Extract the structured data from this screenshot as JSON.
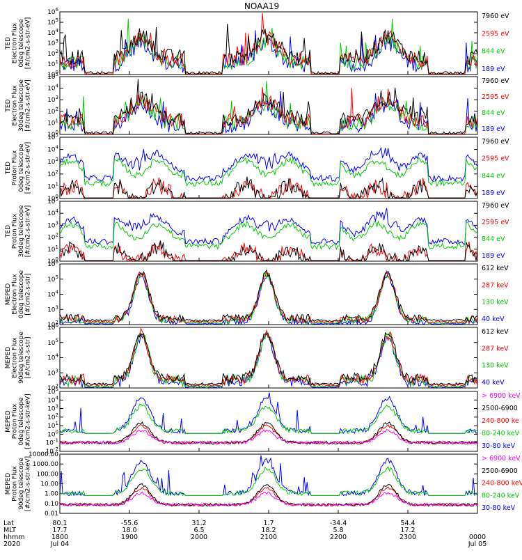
{
  "title": "NOAA19",
  "colors": {
    "black": "#000000",
    "red": "#ff0000",
    "green": "#00ee00",
    "blue": "#0000ff",
    "magenta": "#ff00ff"
  },
  "chart_data": {
    "type": "line",
    "x_range_hhmm": [
      "1800",
      "0000"
    ],
    "panels": [
      {
        "ylabel": [
          "TED",
          "Electron Flux",
          "0deg telescope",
          "[#/cm2-s-str-eV]"
        ],
        "yscale": "log",
        "ylim": [
          1,
          1000000
        ],
        "yticks": [
          "10^6",
          "10^5",
          "10^4",
          "10^3",
          "10^2",
          "10^1",
          "10^0"
        ],
        "legend": [
          {
            "label": "7960 eV",
            "color": "#000000"
          },
          {
            "label": "2595 eV",
            "color": "#ff0000"
          },
          {
            "label": "844 eV",
            "color": "#00cc00"
          },
          {
            "label": "189 eV",
            "color": "#0000ff"
          }
        ]
      },
      {
        "ylabel": [
          "TED",
          "Electron Flux",
          "30deg telescope",
          "[#/cm2-s-str-eV]"
        ],
        "yscale": "log",
        "ylim": [
          1,
          100000
        ],
        "yticks": [
          "10^5",
          "10^4",
          "10^3",
          "10^2",
          "10^1",
          "10^0"
        ],
        "legend": [
          {
            "label": "7960 eV",
            "color": "#000000"
          },
          {
            "label": "2595 eV",
            "color": "#ff0000"
          },
          {
            "label": "844 eV",
            "color": "#00cc00"
          },
          {
            "label": "189 eV",
            "color": "#0000ff"
          }
        ]
      },
      {
        "ylabel": [
          "TED",
          "Proton Flux",
          "0deg telescope",
          "[#/cm2-s-str-eV]"
        ],
        "yscale": "log",
        "ylim": [
          1,
          100000
        ],
        "yticks": [
          "10^5",
          "10^4",
          "10^3",
          "10^2",
          "10^1",
          "10^0"
        ],
        "legend": [
          {
            "label": "7960 eV",
            "color": "#000000"
          },
          {
            "label": "2595 eV",
            "color": "#ff0000"
          },
          {
            "label": "844 eV",
            "color": "#00cc00"
          },
          {
            "label": "189 eV",
            "color": "#0000ff"
          }
        ]
      },
      {
        "ylabel": [
          "TED",
          "Proton Flux",
          "30deg telescope",
          "[#/cm2-s-str-eV]"
        ],
        "yscale": "log",
        "ylim": [
          1,
          100000
        ],
        "yticks": [
          "10^5",
          "10^4",
          "10^3",
          "10^2",
          "10^1",
          "10^0"
        ],
        "legend": [
          {
            "label": "7960 eV",
            "color": "#000000"
          },
          {
            "label": "2595 eV",
            "color": "#ff0000"
          },
          {
            "label": "844 eV",
            "color": "#00cc00"
          },
          {
            "label": "189 eV",
            "color": "#0000ff"
          }
        ]
      },
      {
        "ylabel": [
          "MEPED",
          "Electron Flux",
          "0deg telescope",
          "[#/cm2-s-str]"
        ],
        "yscale": "log",
        "ylim": [
          100,
          1000000
        ],
        "yticks": [
          "10^6",
          "10^5",
          "10^4",
          "10^3",
          "10^2"
        ],
        "legend": [
          {
            "label": "612 keV",
            "color": "#000000"
          },
          {
            "label": "287 keV",
            "color": "#ff0000"
          },
          {
            "label": "130 keV",
            "color": "#00cc00"
          },
          {
            "label": "40 keV",
            "color": "#0000ff"
          }
        ]
      },
      {
        "ylabel": [
          "MEPED",
          "Electron Flux",
          "90deg telescope",
          "[#/cm2-s-str]"
        ],
        "yscale": "log",
        "ylim": [
          100,
          1000000
        ],
        "yticks": [
          "10^6",
          "10^5",
          "10^4",
          "10^3",
          "10^2"
        ],
        "legend": [
          {
            "label": "612 keV",
            "color": "#000000"
          },
          {
            "label": "287 keV",
            "color": "#ff0000"
          },
          {
            "label": "130 keV",
            "color": "#00cc00"
          },
          {
            "label": "40 keV",
            "color": "#0000ff"
          }
        ]
      },
      {
        "ylabel": [
          "MEPED",
          "Proton Flux",
          "0deg telescope",
          "[#/cm2-s-str-keV]"
        ],
        "yscale": "log",
        "ylim": [
          0.01,
          100000
        ],
        "yticks": [
          "10^5",
          "10^4",
          "10^3",
          "10^2",
          "10^1",
          "10^0",
          "10^-1",
          "10^-2"
        ],
        "legend": [
          {
            "label": "> 6900 keV",
            "color": "#ff00ff"
          },
          {
            "label": "2500-6900",
            "color": "#000000"
          },
          {
            "label": "240-800 ke",
            "color": "#ff0000"
          },
          {
            "label": "80-240 keV",
            "color": "#00cc00"
          },
          {
            "label": "30-80 keV",
            "color": "#0000ff"
          }
        ]
      },
      {
        "ylabel": [
          "MEPED",
          "Proton Flux",
          "90deg telescope",
          "[#/cm2-s-str-keV]"
        ],
        "yscale": "log",
        "ylim": [
          0.01,
          10000
        ],
        "yticks": [
          "10000.00",
          "1000.00",
          "100.00",
          "10.00",
          "1.00",
          "0.10",
          "0.01"
        ],
        "legend": [
          {
            "label": "> 6900 keV",
            "color": "#ff00ff"
          },
          {
            "label": "2500-6900",
            "color": "#000000"
          },
          {
            "label": "240-800 keV",
            "color": "#ff0000"
          },
          {
            "label": "80-240 keV",
            "color": "#00cc00"
          },
          {
            "label": "30-80 keV",
            "color": "#0000ff"
          }
        ]
      }
    ],
    "x_axis": {
      "row_labels": [
        "Lat",
        "MLT",
        "hhmm",
        "2020"
      ],
      "ticks": [
        {
          "lat": "80.1",
          "mlt": "17.7",
          "hhmm": "1800",
          "date": "Jul 04"
        },
        {
          "lat": "-55.6",
          "mlt": "18.0",
          "hhmm": "1900",
          "date": ""
        },
        {
          "lat": "31.2",
          "mlt": "6.5",
          "hhmm": "2000",
          "date": ""
        },
        {
          "lat": "1.7",
          "mlt": "18.2",
          "hhmm": "2100",
          "date": ""
        },
        {
          "lat": "-34.4",
          "mlt": "5.8",
          "hhmm": "2200",
          "date": ""
        },
        {
          "lat": "54.4",
          "mlt": "17.2",
          "hhmm": "2300",
          "date": ""
        },
        {
          "lat": "",
          "mlt": "",
          "hhmm": "0000",
          "date": "Jul 05"
        }
      ]
    }
  }
}
